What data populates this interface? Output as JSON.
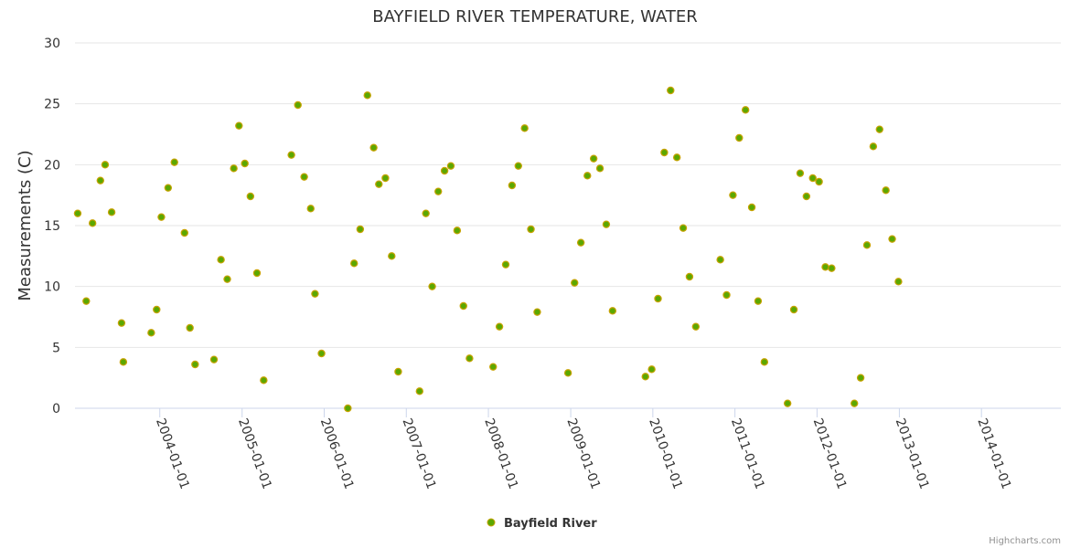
{
  "chart_data": {
    "type": "scatter",
    "title": "BAYFIELD RIVER TEMPERATURE, WATER",
    "ylabel": "Measurements (C)",
    "ylim": [
      0,
      30
    ],
    "y_ticks": [
      "0",
      "5",
      "10",
      "15",
      "20",
      "25",
      "30"
    ],
    "x_range": [
      "2002-12-20",
      "2014-12-20"
    ],
    "x_ticks": [
      "2004-01-01",
      "2005-01-01",
      "2006-01-01",
      "2007-01-01",
      "2008-01-01",
      "2009-01-01",
      "2010-01-01",
      "2011-01-01",
      "2012-01-01",
      "2013-01-01",
      "2014-01-01"
    ],
    "grid": true,
    "legend_position": "bottom-center",
    "series": [
      {
        "name": "Bayfield River",
        "color": "#5ba800",
        "border_color": "#c8a200",
        "points": [
          [
            "2003-01-01",
            16.0
          ],
          [
            "2003-02-08",
            8.8
          ],
          [
            "2003-03-08",
            15.2
          ],
          [
            "2003-04-12",
            18.7
          ],
          [
            "2003-05-03",
            20.0
          ],
          [
            "2003-06-01",
            16.1
          ],
          [
            "2003-07-15",
            7.0
          ],
          [
            "2003-07-23",
            3.8
          ],
          [
            "2003-11-24",
            6.2
          ],
          [
            "2003-12-18",
            8.1
          ],
          [
            "2004-01-08",
            15.7
          ],
          [
            "2004-02-07",
            18.1
          ],
          [
            "2004-03-06",
            20.2
          ],
          [
            "2004-04-20",
            14.4
          ],
          [
            "2004-05-14",
            6.6
          ],
          [
            "2004-06-06",
            3.6
          ],
          [
            "2004-08-29",
            4.0
          ],
          [
            "2004-09-29",
            12.2
          ],
          [
            "2004-10-27",
            10.6
          ],
          [
            "2004-11-25",
            19.7
          ],
          [
            "2004-12-18",
            23.2
          ],
          [
            "2005-01-13",
            20.1
          ],
          [
            "2005-02-07",
            17.4
          ],
          [
            "2005-03-08",
            11.1
          ],
          [
            "2005-04-07",
            2.3
          ],
          [
            "2005-08-08",
            20.8
          ],
          [
            "2005-09-06",
            24.9
          ],
          [
            "2005-10-04",
            19.0
          ],
          [
            "2005-11-02",
            16.4
          ],
          [
            "2005-11-21",
            9.4
          ],
          [
            "2005-12-20",
            4.5
          ],
          [
            "2006-04-16",
            0.0
          ],
          [
            "2006-05-14",
            11.9
          ],
          [
            "2006-06-10",
            14.7
          ],
          [
            "2006-07-12",
            25.7
          ],
          [
            "2006-08-09",
            21.4
          ],
          [
            "2006-09-01",
            18.4
          ],
          [
            "2006-09-30",
            18.9
          ],
          [
            "2006-10-28",
            12.5
          ],
          [
            "2006-11-26",
            3.0
          ],
          [
            "2007-03-01",
            1.4
          ],
          [
            "2007-03-29",
            16.0
          ],
          [
            "2007-04-26",
            10.0
          ],
          [
            "2007-05-23",
            17.8
          ],
          [
            "2007-06-20",
            19.5
          ],
          [
            "2007-07-18",
            19.9
          ],
          [
            "2007-08-15",
            14.6
          ],
          [
            "2007-09-12",
            8.4
          ],
          [
            "2007-10-09",
            4.1
          ],
          [
            "2008-01-22",
            3.4
          ],
          [
            "2008-02-19",
            6.7
          ],
          [
            "2008-03-18",
            11.8
          ],
          [
            "2008-04-15",
            18.3
          ],
          [
            "2008-05-13",
            19.9
          ],
          [
            "2008-06-10",
            23.0
          ],
          [
            "2008-07-08",
            14.7
          ],
          [
            "2008-08-05",
            7.9
          ],
          [
            "2008-12-20",
            2.9
          ],
          [
            "2009-01-18",
            10.3
          ],
          [
            "2009-02-15",
            13.6
          ],
          [
            "2009-03-16",
            19.1
          ],
          [
            "2009-04-13",
            20.5
          ],
          [
            "2009-05-11",
            19.7
          ],
          [
            "2009-06-08",
            15.1
          ],
          [
            "2009-07-06",
            8.0
          ],
          [
            "2009-11-29",
            2.6
          ],
          [
            "2009-12-27",
            3.2
          ],
          [
            "2010-01-24",
            9.0
          ],
          [
            "2010-02-21",
            21.0
          ],
          [
            "2010-03-21",
            26.1
          ],
          [
            "2010-04-18",
            20.6
          ],
          [
            "2010-05-16",
            14.8
          ],
          [
            "2010-06-13",
            10.8
          ],
          [
            "2010-07-11",
            6.7
          ],
          [
            "2010-10-28",
            12.2
          ],
          [
            "2010-11-25",
            9.3
          ],
          [
            "2010-12-23",
            17.5
          ],
          [
            "2011-01-20",
            22.2
          ],
          [
            "2011-02-17",
            24.5
          ],
          [
            "2011-03-17",
            16.5
          ],
          [
            "2011-04-14",
            8.8
          ],
          [
            "2011-05-12",
            3.8
          ],
          [
            "2011-08-23",
            0.4
          ],
          [
            "2011-09-20",
            8.1
          ],
          [
            "2011-10-18",
            19.3
          ],
          [
            "2011-11-15",
            17.4
          ],
          [
            "2011-12-13",
            18.9
          ],
          [
            "2012-01-10",
            18.6
          ],
          [
            "2012-02-07",
            11.6
          ],
          [
            "2012-03-06",
            11.5
          ],
          [
            "2012-06-15",
            0.4
          ],
          [
            "2012-07-13",
            2.5
          ],
          [
            "2012-08-10",
            13.4
          ],
          [
            "2012-09-07",
            21.5
          ],
          [
            "2012-10-05",
            22.9
          ],
          [
            "2012-11-02",
            17.9
          ],
          [
            "2012-11-30",
            13.9
          ],
          [
            "2012-12-28",
            10.4
          ]
        ]
      }
    ],
    "credits": "Highcharts.com"
  }
}
